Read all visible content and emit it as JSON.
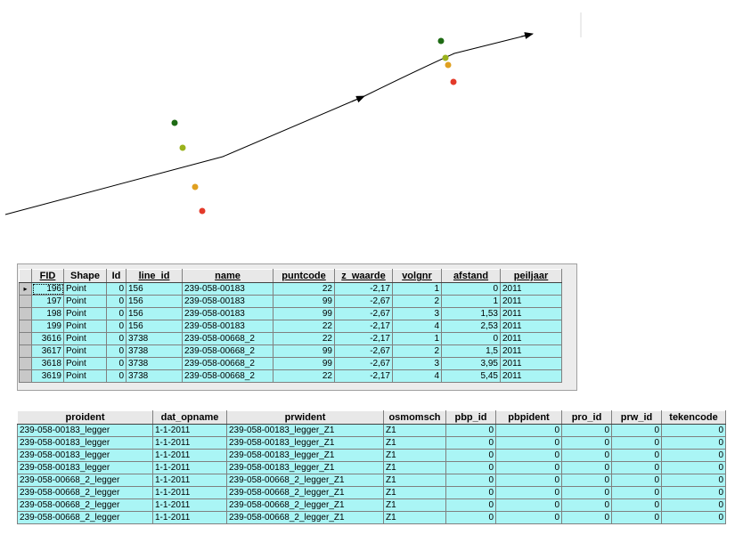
{
  "map": {
    "point_colors": {
      "dark_green": "#1e6b14",
      "yellow_green": "#9ab21c",
      "orange": "#e0a020",
      "red": "#e33a2a"
    },
    "line_color": "#000000"
  },
  "table1": {
    "columns": [
      "FID",
      "Shape",
      "Id",
      "line_id",
      "name",
      "puntcode",
      "z_waarde",
      "volgnr",
      "afstand",
      "peiljaar"
    ],
    "rows": [
      [
        "196",
        "Point",
        "0",
        "156",
        "239-058-00183",
        "22",
        "-2,17",
        "1",
        "0",
        "2011"
      ],
      [
        "197",
        "Point",
        "0",
        "156",
        "239-058-00183",
        "99",
        "-2,67",
        "2",
        "1",
        "2011"
      ],
      [
        "198",
        "Point",
        "0",
        "156",
        "239-058-00183",
        "99",
        "-2,67",
        "3",
        "1,53",
        "2011"
      ],
      [
        "199",
        "Point",
        "0",
        "156",
        "239-058-00183",
        "22",
        "-2,17",
        "4",
        "2,53",
        "2011"
      ],
      [
        "3616",
        "Point",
        "0",
        "3738",
        "239-058-00668_2",
        "22",
        "-2,17",
        "1",
        "0",
        "2011"
      ],
      [
        "3617",
        "Point",
        "0",
        "3738",
        "239-058-00668_2",
        "99",
        "-2,67",
        "2",
        "1,5",
        "2011"
      ],
      [
        "3618",
        "Point",
        "0",
        "3738",
        "239-058-00668_2",
        "99",
        "-2,67",
        "3",
        "3,95",
        "2011"
      ],
      [
        "3619",
        "Point",
        "0",
        "3738",
        "239-058-00668_2",
        "22",
        "-2,17",
        "4",
        "5,45",
        "2011"
      ]
    ],
    "row_indicator": "▸"
  },
  "table2": {
    "columns": [
      "proident",
      "dat_opname",
      "prwident",
      "osmomsch",
      "pbp_id",
      "pbpident",
      "pro_id",
      "prw_id",
      "tekencode"
    ],
    "rows": [
      [
        "239-058-00183_legger",
        "1-1-2011",
        "239-058-00183_legger_Z1",
        "Z1",
        "0",
        "0",
        "0",
        "0",
        "0"
      ],
      [
        "239-058-00183_legger",
        "1-1-2011",
        "239-058-00183_legger_Z1",
        "Z1",
        "0",
        "0",
        "0",
        "0",
        "0"
      ],
      [
        "239-058-00183_legger",
        "1-1-2011",
        "239-058-00183_legger_Z1",
        "Z1",
        "0",
        "0",
        "0",
        "0",
        "0"
      ],
      [
        "239-058-00183_legger",
        "1-1-2011",
        "239-058-00183_legger_Z1",
        "Z1",
        "0",
        "0",
        "0",
        "0",
        "0"
      ],
      [
        "239-058-00668_2_legger",
        "1-1-2011",
        "239-058-00668_2_legger_Z1",
        "Z1",
        "0",
        "0",
        "0",
        "0",
        "0"
      ],
      [
        "239-058-00668_2_legger",
        "1-1-2011",
        "239-058-00668_2_legger_Z1",
        "Z1",
        "0",
        "0",
        "0",
        "0",
        "0"
      ],
      [
        "239-058-00668_2_legger",
        "1-1-2011",
        "239-058-00668_2_legger_Z1",
        "Z1",
        "0",
        "0",
        "0",
        "0",
        "0"
      ],
      [
        "239-058-00668_2_legger",
        "1-1-2011",
        "239-058-00668_2_legger_Z1",
        "Z1",
        "0",
        "0",
        "0",
        "0",
        "0"
      ]
    ]
  }
}
